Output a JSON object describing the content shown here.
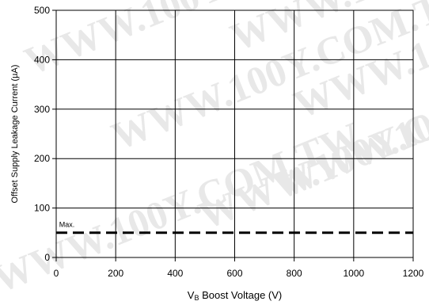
{
  "chart_data": {
    "type": "line",
    "title": "",
    "xlabel": {
      "main": "V",
      "sub": "B",
      "rest": " Boost Voltage (V)"
    },
    "ylabel": "Offset Supply Leakage Current (µA)",
    "xlim": [
      0,
      1200
    ],
    "ylim": [
      0,
      500
    ],
    "x_ticks": [
      0,
      200,
      400,
      600,
      800,
      1000,
      1200
    ],
    "y_ticks": [
      0,
      100,
      200,
      300,
      400,
      500
    ],
    "grid": true,
    "series": [
      {
        "name": "",
        "style": "dashed",
        "color": "#000000",
        "x": [
          0,
          1200
        ],
        "y": [
          50,
          50
        ]
      }
    ],
    "annotations": [
      {
        "text": "Max.",
        "x": 10,
        "y": 62
      }
    ]
  },
  "watermark": "WWW.100Y.COM.TW"
}
